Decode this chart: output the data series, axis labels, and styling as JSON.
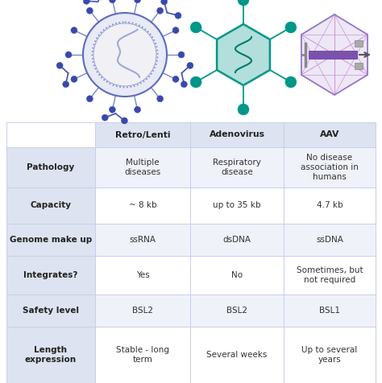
{
  "col_headers": [
    "Retro/Lenti",
    "Adenovirus",
    "AAV"
  ],
  "row_headers": [
    "Pathology",
    "Capacity",
    "Genome make up",
    "Integrates?",
    "Safety level",
    "Length\nexpression"
  ],
  "cells": [
    [
      "Multiple\ndiseases",
      "Respiratory\ndisease",
      "No disease\nassociation in\nhumans"
    ],
    [
      "~ 8 kb",
      "up to 35 kb",
      "4.7 kb"
    ],
    [
      "ssRNA",
      "dsDNA",
      "ssDNA"
    ],
    [
      "Yes",
      "No",
      "Sometimes, but\nnot required"
    ],
    [
      "BSL2",
      "BSL2",
      "BSL1"
    ],
    [
      "Stable - long\nterm",
      "Several weeks",
      "Up to several\nyears"
    ]
  ],
  "header_bg": "#dde3f0",
  "row_header_bg": "#dde3f0",
  "cell_bg_odd": "#f0f2fa",
  "cell_bg_even": "#ffffff",
  "border_color": "#c8cfe8",
  "header_text_color": "#222222",
  "cell_text_color": "#333333",
  "bg_color": "#ffffff",
  "retro_outer_color": "#5c6bc0",
  "retro_fill": "#e8eaf6",
  "retro_dot_color": "#7986cb",
  "retro_spike_tip": "#3949ab",
  "retro_inner_fill": "#f5f5f5",
  "adeno_fill": "#b2dfdb",
  "adeno_edge": "#009688",
  "adeno_arm_color": "#009688",
  "aav_fill": "#ede7f6",
  "aav_edge": "#9575cd",
  "aav_line": "#b39ddb",
  "syringe_body": "#7b52ab",
  "syringe_metal": "#888888"
}
